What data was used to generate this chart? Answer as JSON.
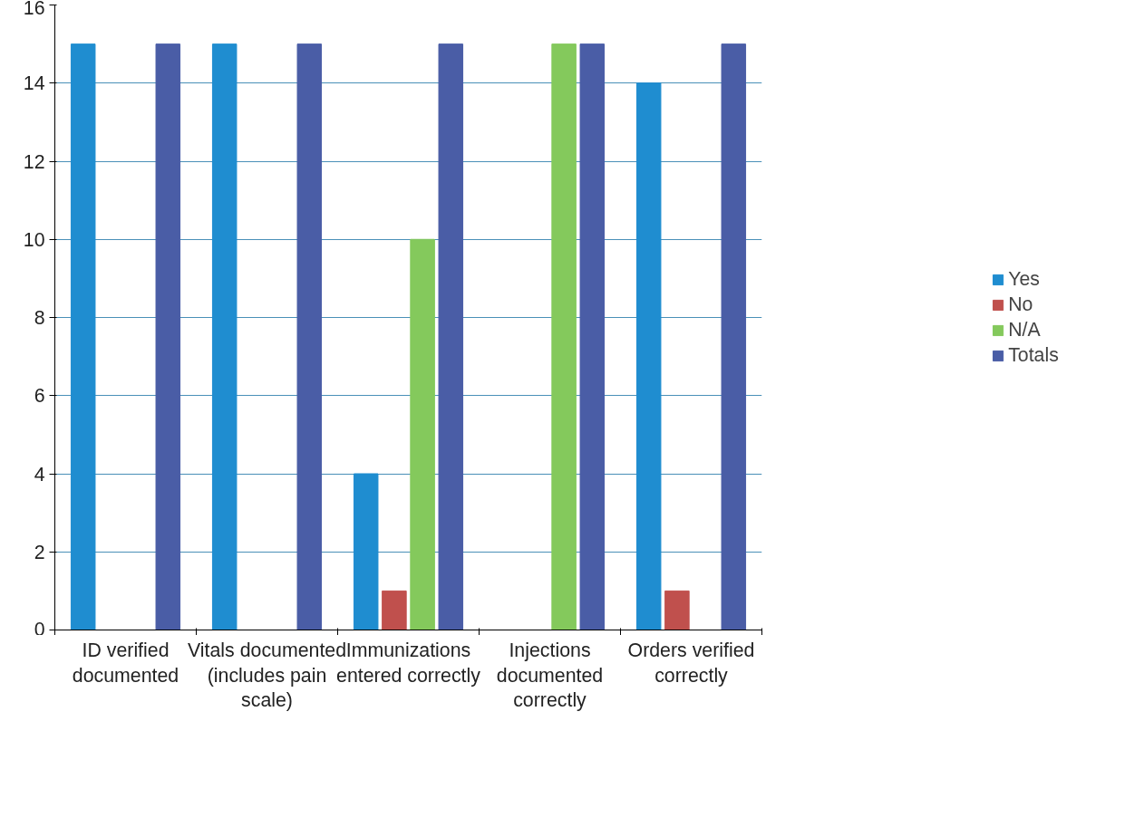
{
  "chart_data": {
    "type": "bar",
    "categories": [
      "ID verified documented",
      "Vitals documented (includes pain scale)",
      "Immunizations entered correctly",
      "Injections documented correctly",
      "Orders verified correctly"
    ],
    "series": [
      {
        "name": "Yes",
        "color": "#1f8dd0",
        "values": [
          15,
          15,
          4,
          0,
          14
        ]
      },
      {
        "name": "No",
        "color": "#c0504d",
        "values": [
          0,
          0,
          1,
          0,
          1
        ]
      },
      {
        "name": "N/A",
        "color": "#84c95c",
        "values": [
          0,
          0,
          10,
          15,
          0
        ]
      },
      {
        "name": "Totals",
        "color": "#4a5da6",
        "values": [
          15,
          15,
          15,
          15,
          15
        ]
      }
    ],
    "ylim": [
      0,
      16
    ],
    "yticks": [
      0,
      2,
      4,
      6,
      8,
      10,
      12,
      14,
      16
    ],
    "grid": "y",
    "legend": "right"
  }
}
